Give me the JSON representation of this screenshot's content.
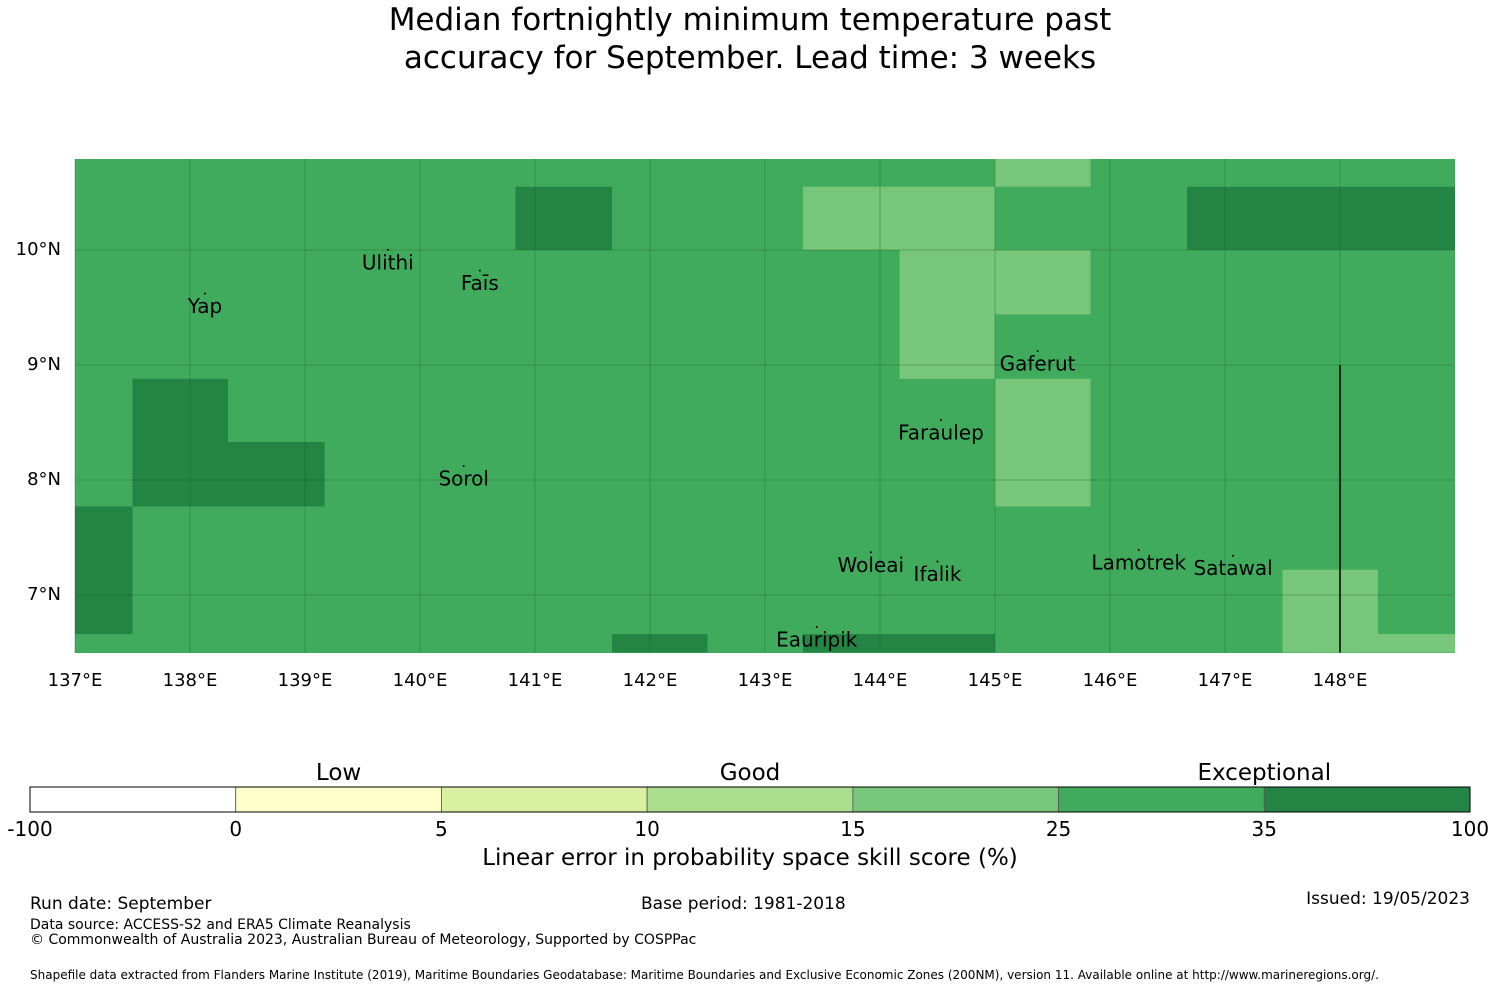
{
  "title": {
    "line1": "Median fortnightly minimum temperature past",
    "line2": "accuracy for September. Lead time: 3 weeks"
  },
  "map": {
    "lon_range": [
      137,
      149
    ],
    "lat_range": [
      6.5,
      10.8
    ],
    "lon_ticks": [
      {
        "value": 137,
        "label": "137°E"
      },
      {
        "value": 138,
        "label": "138°E"
      },
      {
        "value": 139,
        "label": "139°E"
      },
      {
        "value": 140,
        "label": "140°E"
      },
      {
        "value": 141,
        "label": "141°E"
      },
      {
        "value": 142,
        "label": "142°E"
      },
      {
        "value": 143,
        "label": "143°E"
      },
      {
        "value": 144,
        "label": "144°E"
      },
      {
        "value": 145,
        "label": "145°E"
      },
      {
        "value": 146,
        "label": "146°E"
      },
      {
        "value": 147,
        "label": "147°E"
      },
      {
        "value": 148,
        "label": "148°E"
      }
    ],
    "lat_ticks": [
      {
        "value": 10,
        "label": "10°N"
      },
      {
        "value": 9,
        "label": "9°N"
      },
      {
        "value": 8,
        "label": "8°N"
      },
      {
        "value": 7,
        "label": "7°N"
      }
    ],
    "background_class": 25,
    "cells": [
      {
        "lon": [
          140.83,
          141.67
        ],
        "lat": [
          10.0,
          10.55
        ],
        "class": 35
      },
      {
        "lon": [
          143.33,
          145.0
        ],
        "lat": [
          10.0,
          10.55
        ],
        "class": 15
      },
      {
        "lon": [
          145.0,
          145.83
        ],
        "lat": [
          10.55,
          10.8
        ],
        "class": 15
      },
      {
        "lon": [
          146.67,
          149.0
        ],
        "lat": [
          10.0,
          10.55
        ],
        "class": 35
      },
      {
        "lon": [
          144.17,
          145.0
        ],
        "lat": [
          8.88,
          10.0
        ],
        "class": 15
      },
      {
        "lon": [
          145.0,
          145.83
        ],
        "lat": [
          9.44,
          10.0
        ],
        "class": 15
      },
      {
        "lon": [
          145.0,
          145.83
        ],
        "lat": [
          7.77,
          8.88
        ],
        "class": 15
      },
      {
        "lon": [
          137.5,
          138.33
        ],
        "lat": [
          8.33,
          8.88
        ],
        "class": 35
      },
      {
        "lon": [
          137.5,
          139.17
        ],
        "lat": [
          7.77,
          8.33
        ],
        "class": 35
      },
      {
        "lon": [
          137.0,
          137.5
        ],
        "lat": [
          6.66,
          7.77
        ],
        "class": 35
      },
      {
        "lon": [
          141.67,
          142.5
        ],
        "lat": [
          6.5,
          6.66
        ],
        "class": 35
      },
      {
        "lon": [
          143.33,
          145.0
        ],
        "lat": [
          6.5,
          6.66
        ],
        "class": 35
      },
      {
        "lon": [
          147.5,
          148.33
        ],
        "lat": [
          6.5,
          7.22
        ],
        "class": 15
      },
      {
        "lon": [
          148.33,
          149.0
        ],
        "lat": [
          6.5,
          6.66
        ],
        "class": 15
      }
    ],
    "boundary_line": {
      "lon": 148.0,
      "lat": [
        6.5,
        9.0
      ]
    },
    "places": [
      {
        "name": "Yap",
        "lon": 138.13,
        "lat": 9.5
      },
      {
        "name": "Ulithi",
        "lon": 139.72,
        "lat": 9.88
      },
      {
        "name": "Faīs",
        "lon": 140.52,
        "lat": 9.7
      },
      {
        "name": "Gaferut",
        "lon": 145.37,
        "lat": 9.0
      },
      {
        "name": "Faraulep",
        "lon": 144.53,
        "lat": 8.4
      },
      {
        "name": "Sorol",
        "lon": 140.38,
        "lat": 8.0
      },
      {
        "name": "Woleai",
        "lon": 143.92,
        "lat": 7.25
      },
      {
        "name": "Ifalik",
        "lon": 144.5,
        "lat": 7.17
      },
      {
        "name": "Lamotrek",
        "lon": 146.25,
        "lat": 7.27
      },
      {
        "name": "Satawal",
        "lon": 147.07,
        "lat": 7.22
      },
      {
        "name": "Eauripik",
        "lon": 143.45,
        "lat": 6.6
      }
    ]
  },
  "legend": {
    "categories": [
      {
        "label": "Low",
        "center_value": 2.5
      },
      {
        "label": "Good",
        "center_value": 12.5
      },
      {
        "label": "Exceptional",
        "center_value": 35
      }
    ],
    "bins": [
      {
        "from": "-100",
        "to": "0",
        "color": "#ffffff"
      },
      {
        "from": "0",
        "to": "5",
        "color": "#ffffcc"
      },
      {
        "from": "5",
        "to": "10",
        "color": "#d9f0a3"
      },
      {
        "from": "10",
        "to": "15",
        "color": "#addd8e"
      },
      {
        "from": "15",
        "to": "25",
        "color": "#78c679"
      },
      {
        "from": "25",
        "to": "35",
        "color": "#41ab5d"
      },
      {
        "from": "35",
        "to": "100",
        "color": "#238443"
      }
    ],
    "tick_labels": [
      "-100",
      "0",
      "5",
      "10",
      "15",
      "25",
      "35",
      "100"
    ],
    "axis_label": "Linear error in probability space skill score (%)"
  },
  "colors": {
    "15": "#78c679",
    "25": "#41ab5d",
    "35": "#238443"
  },
  "footer": {
    "run_date": "Run date: September",
    "base_period": "Base period: 1981-2018",
    "issued": "Issued: 19/05/2023",
    "data_source": "Data source: ACCESS-S2 and ERA5 Climate Reanalysis",
    "copyright": "© Commonwealth of Australia 2023, Australian Bureau of Meteorology, Supported by COSPPac",
    "shapefile": "Shapefile data extracted from Flanders Marine Institute (2019), Maritime Boundaries Geodatabase: Maritime Boundaries and Exclusive Economic Zones (200NM), version 11. Available online at http://www.marineregions.org/."
  }
}
